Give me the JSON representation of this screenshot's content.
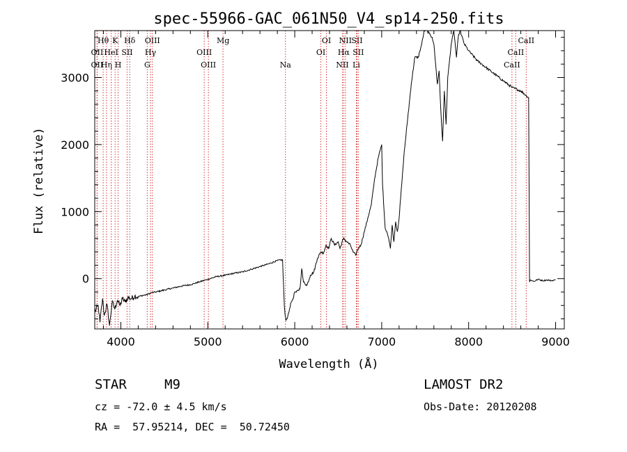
{
  "chart_data": {
    "type": "line",
    "title": "spec-55966-GAC_061N50_V4_sp14-250.fits",
    "xlabel": "Wavelength (Å)",
    "ylabel": "Flux (relative)",
    "xlim": [
      3700,
      9100
    ],
    "ylim": [
      -750,
      3700
    ],
    "xticks": [
      4000,
      5000,
      6000,
      7000,
      8000,
      9000
    ],
    "yticks": [
      0,
      1000,
      2000,
      3000
    ],
    "x_minor_step": 200,
    "y_minor_step": 200,
    "grid": false,
    "line_color": "#000000",
    "marker_color": "#cc0000",
    "series": [
      {
        "x": [
          3700,
          3740,
          3760,
          3790,
          3810,
          3840,
          3870,
          3900,
          3930,
          3960,
          3990,
          4020,
          4050,
          4080,
          4120,
          4160,
          4200,
          4250,
          4300,
          4350,
          4400,
          4500,
          4600,
          4700,
          4800,
          4900,
          5000,
          5100,
          5200,
          5300,
          5400,
          5500,
          5600,
          5700,
          5800,
          5860,
          5880,
          5890,
          5900,
          5920,
          5940,
          5960,
          5980,
          6000,
          6020,
          6060,
          6080,
          6100,
          6140,
          6180,
          6220,
          6260,
          6300,
          6330,
          6360,
          6390,
          6420,
          6460,
          6500,
          6520,
          6560,
          6600,
          6640,
          6670,
          6700,
          6730,
          6760,
          6800,
          6840,
          6880,
          6920,
          6960,
          7000,
          7010,
          7040,
          7060,
          7080,
          7100,
          7120,
          7140,
          7160,
          7180,
          7200,
          7230,
          7260,
          7300,
          7340,
          7380,
          7420,
          7460,
          7490,
          7520,
          7550,
          7580,
          7600,
          7620,
          7640,
          7660,
          7680,
          7700,
          7720,
          7740,
          7760,
          7800,
          7830,
          7860,
          7880,
          7900,
          7950,
          8000,
          8100,
          8200,
          8300,
          8400,
          8500,
          8600,
          8690,
          8700,
          8710,
          8750,
          8800,
          8850,
          8900,
          8950,
          9000
        ],
        "values": [
          -500,
          -400,
          -650,
          -300,
          -550,
          -380,
          -700,
          -350,
          -450,
          -320,
          -400,
          -300,
          -350,
          -280,
          -300,
          -260,
          -270,
          -250,
          -240,
          -210,
          -200,
          -170,
          -140,
          -110,
          -90,
          -50,
          -10,
          30,
          50,
          80,
          100,
          140,
          180,
          220,
          270,
          280,
          -400,
          -550,
          -620,
          -560,
          -450,
          -350,
          -300,
          -200,
          -200,
          -150,
          150,
          -50,
          -100,
          50,
          100,
          300,
          400,
          380,
          500,
          450,
          600,
          500,
          550,
          450,
          600,
          550,
          500,
          400,
          350,
          450,
          500,
          700,
          900,
          1100,
          1500,
          1800,
          2000,
          1400,
          750,
          700,
          600,
          450,
          800,
          550,
          850,
          700,
          900,
          1400,
          1900,
          2400,
          2900,
          3300,
          3300,
          3500,
          3700,
          3700,
          3650,
          3600,
          3500,
          3200,
          2900,
          3100,
          2500,
          2050,
          2800,
          2300,
          3000,
          3500,
          3700,
          3300,
          3600,
          3700,
          3500,
          3400,
          3250,
          3150,
          3050,
          2950,
          2850,
          2800,
          2700,
          -50,
          -20,
          -40,
          -10,
          -30,
          -20,
          -30,
          -20
        ]
      }
    ],
    "line_markers": [
      {
        "x": 3797,
        "label": "Hθ",
        "row": 0
      },
      {
        "x": 3727,
        "label": "OII",
        "row": 1
      },
      {
        "x": 3727,
        "label": "OII",
        "row": 2
      },
      {
        "x": 3835,
        "label": "Hη",
        "row": 2
      },
      {
        "x": 3934,
        "label": "K",
        "row": 0
      },
      {
        "x": 3889,
        "label": "HeI",
        "row": 1
      },
      {
        "x": 3969,
        "label": "H",
        "row": 2
      },
      {
        "x": 4072,
        "label": "SII",
        "row": 1
      },
      {
        "x": 4102,
        "label": "Hδ",
        "row": 0
      },
      {
        "x": 4363,
        "label": "OIII",
        "row": 0
      },
      {
        "x": 4341,
        "label": "Hγ",
        "row": 1
      },
      {
        "x": 4304,
        "label": "G",
        "row": 2
      },
      {
        "x": 4959,
        "label": "OIII",
        "row": 1
      },
      {
        "x": 5007,
        "label": "OIII",
        "row": 2
      },
      {
        "x": 5175,
        "label": "Mg",
        "row": 0
      },
      {
        "x": 5893,
        "label": "Na",
        "row": 2
      },
      {
        "x": 6364,
        "label": "OI",
        "row": 0
      },
      {
        "x": 6300,
        "label": "OI",
        "row": 1
      },
      {
        "x": 6583,
        "label": "NII",
        "row": 0
      },
      {
        "x": 6563,
        "label": "Hα",
        "row": 1
      },
      {
        "x": 6548,
        "label": "NII",
        "row": 2
      },
      {
        "x": 6716,
        "label": "SII",
        "row": 0
      },
      {
        "x": 6731,
        "label": "SII",
        "row": 1
      },
      {
        "x": 6708,
        "label": "Li",
        "row": 2
      },
      {
        "x": 8662,
        "label": "CaII",
        "row": 0
      },
      {
        "x": 8542,
        "label": "CaII",
        "row": 1
      },
      {
        "x": 8498,
        "label": "CaII",
        "row": 2
      }
    ]
  },
  "info": {
    "class_label": "STAR",
    "subclass": "M9",
    "cz": "cz = -72.0 ± 4.5 km/s",
    "coords": "RA =  57.95214, DEC =  50.72450",
    "survey": "LAMOST DR2",
    "obs_date": "Obs-Date: 20120208"
  }
}
